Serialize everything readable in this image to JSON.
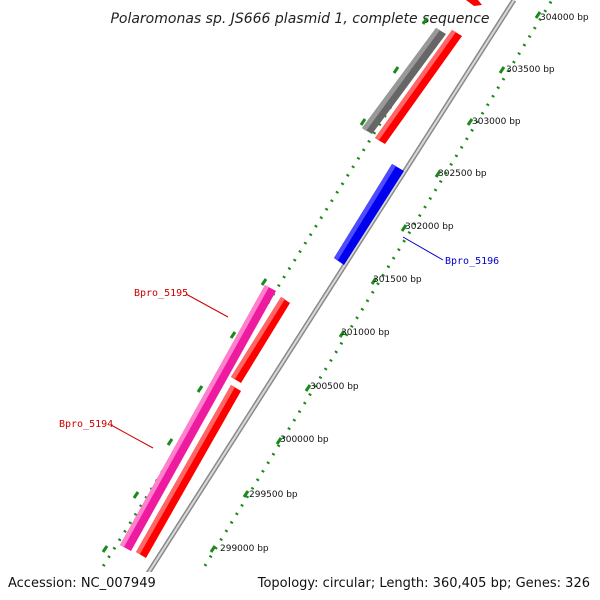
{
  "title": "Polaromonas sp. JS666 plasmid 1, complete sequence",
  "accession": "Accession: NC_007949",
  "summary": "Topology: circular; Length: 360,405 bp; Genes: 326",
  "ruler_labels": [
    "299000 bp",
    "299500 bp",
    "300000 bp",
    "300500 bp",
    "301000 bp",
    "301500 bp",
    "302000 bp",
    "302500 bp",
    "303000 bp",
    "303500 bp",
    "304000 bp"
  ],
  "gene_labels": {
    "bpro_5194": "Bpro_5194",
    "bpro_5195": "Bpro_5195",
    "bpro_5196": "Bpro_5196"
  },
  "colors": {
    "forward_cds": "#ff0000",
    "reverse_cds": "#0000ee",
    "highlight_gene": "#ee1aa0",
    "other_feature": "#666666",
    "ruler": "#1a8a1a",
    "label_red": "#cc0000",
    "label_blue": "#0000cc"
  }
}
